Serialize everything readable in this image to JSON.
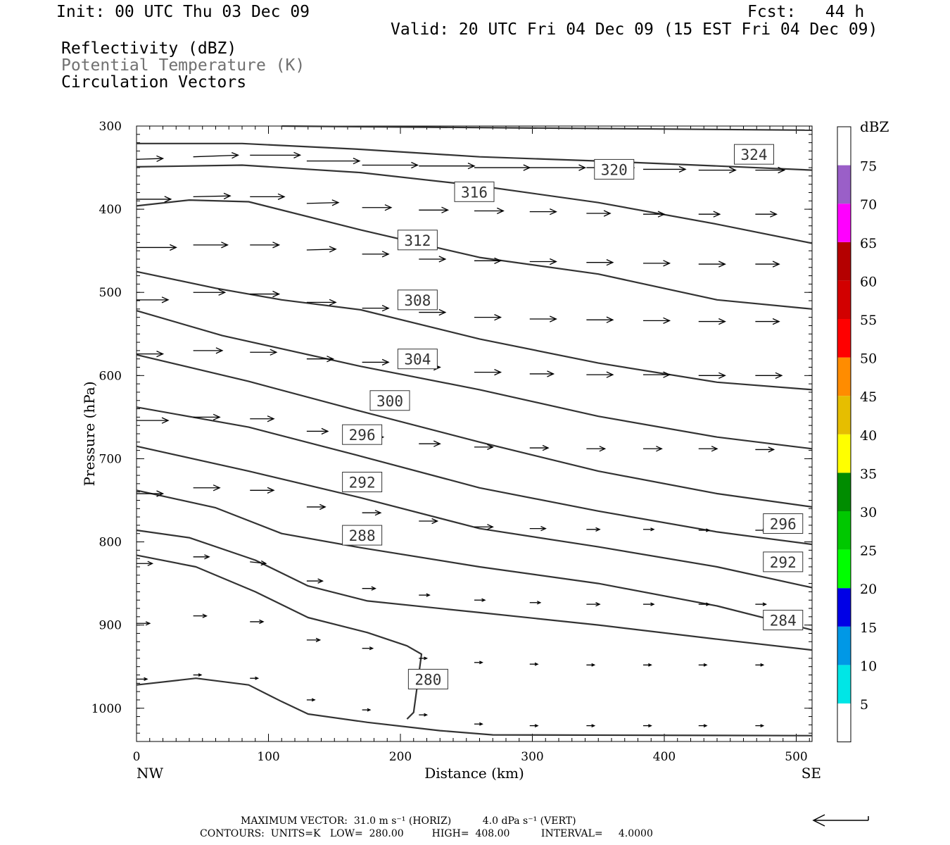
{
  "header": {
    "init": "Init: 00 UTC Thu 03 Dec 09",
    "fcst": "Fcst:   44 h",
    "valid": "Valid: 20 UTC Fri 04 Dec 09 (15 EST Fri 04 Dec 09)",
    "field1": "Reflectivity (dBZ)",
    "field2": "Potential Temperature (K)",
    "field3": "Circulation Vectors"
  },
  "footer": {
    "max_vector": "MAXIMUM VECTOR:  31.0 m s⁻¹ (HORIZ)          4.0 dPa s⁻¹ (VERT)",
    "contours": "CONTOURS:  UNITS=K   LOW=  280.00         HIGH=  408.00          INTERVAL=     4.0000"
  },
  "colorbar": {
    "title": "dBZ",
    "labels": [
      "5",
      "10",
      "15",
      "20",
      "25",
      "30",
      "35",
      "40",
      "45",
      "50",
      "55",
      "60",
      "65",
      "70",
      "75"
    ],
    "colors": [
      "#ffffff",
      "#00e6e6",
      "#0098e6",
      "#0000e6",
      "#00ff00",
      "#00c800",
      "#008c00",
      "#ffff00",
      "#e6be00",
      "#ff8c00",
      "#ff0000",
      "#d20000",
      "#b40000",
      "#ff00ff",
      "#9a5fc8",
      "#ffffff"
    ]
  },
  "chart_data": {
    "type": "line",
    "xlabel": "Distance (km)",
    "ylabel": "Pressure (hPa)",
    "x_ticks": [
      0,
      100,
      200,
      300,
      400,
      500
    ],
    "y_ticks": [
      300,
      400,
      500,
      600,
      700,
      800,
      900,
      1000
    ],
    "xlim": [
      0,
      512
    ],
    "ylim": [
      300,
      1040
    ],
    "left_end_label": "NW",
    "right_end_label": "SE",
    "contour_labels": [
      {
        "text": "324",
        "x": 468,
        "p": 334
      },
      {
        "text": "320",
        "x": 362,
        "p": 352
      },
      {
        "text": "316",
        "x": 256,
        "p": 379
      },
      {
        "text": "312",
        "x": 213,
        "p": 437
      },
      {
        "text": "308",
        "x": 213,
        "p": 509
      },
      {
        "text": "304",
        "x": 213,
        "p": 580
      },
      {
        "text": "300",
        "x": 192,
        "p": 630
      },
      {
        "text": "296",
        "x": 171,
        "p": 671
      },
      {
        "text": "292",
        "x": 171,
        "p": 728
      },
      {
        "text": "288",
        "x": 171,
        "p": 792
      },
      {
        "text": "296",
        "x": 490,
        "p": 778
      },
      {
        "text": "292",
        "x": 490,
        "p": 824
      },
      {
        "text": "284",
        "x": 490,
        "p": 894
      },
      {
        "text": "280",
        "x": 221,
        "p": 965
      }
    ],
    "contours": [
      {
        "pts": [
          [
            110,
            300
          ],
          [
            512,
            305
          ]
        ]
      },
      {
        "pts": [
          [
            0,
            321
          ],
          [
            80,
            321
          ],
          [
            170,
            328
          ],
          [
            260,
            337
          ],
          [
            350,
            342
          ],
          [
            440,
            348
          ],
          [
            512,
            353
          ]
        ]
      },
      {
        "pts": [
          [
            0,
            349
          ],
          [
            80,
            347
          ],
          [
            170,
            356
          ],
          [
            260,
            372
          ],
          [
            350,
            392
          ],
          [
            440,
            418
          ],
          [
            512,
            441
          ]
        ]
      },
      {
        "pts": [
          [
            0,
            396
          ],
          [
            40,
            389
          ],
          [
            85,
            391
          ],
          [
            170,
            425
          ],
          [
            260,
            458
          ],
          [
            350,
            478
          ],
          [
            440,
            509
          ],
          [
            512,
            520
          ]
        ]
      },
      {
        "pts": [
          [
            0,
            475
          ],
          [
            60,
            495
          ],
          [
            110,
            509
          ],
          [
            170,
            521
          ],
          [
            260,
            556
          ],
          [
            350,
            585
          ],
          [
            440,
            608
          ],
          [
            512,
            617
          ]
        ]
      },
      {
        "pts": [
          [
            0,
            522
          ],
          [
            65,
            552
          ],
          [
            170,
            589
          ],
          [
            260,
            617
          ],
          [
            350,
            649
          ],
          [
            440,
            674
          ],
          [
            512,
            688
          ]
        ]
      },
      {
        "pts": [
          [
            0,
            575
          ],
          [
            85,
            607
          ],
          [
            170,
            643
          ],
          [
            260,
            680
          ],
          [
            350,
            715
          ],
          [
            440,
            742
          ],
          [
            512,
            758
          ]
        ]
      },
      {
        "pts": [
          [
            0,
            638
          ],
          [
            85,
            662
          ],
          [
            170,
            697
          ],
          [
            260,
            735
          ],
          [
            350,
            763
          ],
          [
            440,
            788
          ],
          [
            512,
            803
          ]
        ]
      },
      {
        "pts": [
          [
            0,
            685
          ],
          [
            85,
            715
          ],
          [
            170,
            747
          ],
          [
            260,
            784
          ],
          [
            350,
            806
          ],
          [
            440,
            830
          ],
          [
            512,
            855
          ]
        ]
      },
      {
        "pts": [
          [
            0,
            738
          ],
          [
            60,
            759
          ],
          [
            110,
            790
          ],
          [
            170,
            807
          ],
          [
            260,
            830
          ],
          [
            350,
            850
          ],
          [
            440,
            877
          ],
          [
            512,
            906
          ]
        ]
      },
      {
        "pts": [
          [
            0,
            786
          ],
          [
            40,
            795
          ],
          [
            90,
            822
          ],
          [
            130,
            853
          ],
          [
            175,
            871
          ],
          [
            260,
            885
          ],
          [
            350,
            900
          ],
          [
            440,
            917
          ],
          [
            512,
            930
          ]
        ]
      },
      {
        "pts": [
          [
            0,
            816
          ],
          [
            45,
            830
          ],
          [
            90,
            860
          ],
          [
            130,
            891
          ],
          [
            175,
            909
          ],
          [
            205,
            925
          ],
          [
            216,
            935
          ],
          [
            210,
            1005
          ],
          [
            205,
            1013
          ]
        ]
      },
      {
        "pts": [
          [
            0,
            972
          ],
          [
            45,
            964
          ],
          [
            85,
            972
          ],
          [
            110,
            992
          ],
          [
            130,
            1007
          ],
          [
            175,
            1017
          ],
          [
            230,
            1027
          ],
          [
            270,
            1032
          ],
          [
            512,
            1033
          ]
        ]
      }
    ],
    "vectors": [
      [
        0,
        340,
        20,
        -1
      ],
      [
        43,
        337,
        34,
        -2
      ],
      [
        86,
        335,
        38,
        0
      ],
      [
        129,
        342,
        40,
        0
      ],
      [
        171,
        347,
        42,
        0
      ],
      [
        214,
        348,
        42,
        0
      ],
      [
        256,
        350,
        42,
        0
      ],
      [
        298,
        350,
        42,
        0
      ],
      [
        341,
        350,
        36,
        0
      ],
      [
        384,
        352,
        32,
        0
      ],
      [
        426,
        353,
        28,
        0
      ],
      [
        469,
        353,
        22,
        0
      ],
      [
        0,
        388,
        26,
        0
      ],
      [
        43,
        385,
        28,
        -1
      ],
      [
        86,
        385,
        26,
        0
      ],
      [
        129,
        393,
        24,
        -1
      ],
      [
        171,
        398,
        22,
        0
      ],
      [
        214,
        401,
        22,
        0
      ],
      [
        256,
        402,
        22,
        0
      ],
      [
        298,
        403,
        20,
        0
      ],
      [
        341,
        405,
        18,
        0
      ],
      [
        384,
        406,
        16,
        0
      ],
      [
        426,
        406,
        16,
        0
      ],
      [
        469,
        406,
        16,
        0
      ],
      [
        0,
        446,
        30,
        0
      ],
      [
        43,
        443,
        26,
        0
      ],
      [
        86,
        443,
        22,
        0
      ],
      [
        129,
        449,
        22,
        -1
      ],
      [
        171,
        454,
        20,
        0
      ],
      [
        214,
        460,
        20,
        0
      ],
      [
        256,
        462,
        20,
        0
      ],
      [
        298,
        463,
        20,
        0
      ],
      [
        341,
        464,
        20,
        0
      ],
      [
        384,
        465,
        20,
        0
      ],
      [
        426,
        466,
        20,
        0
      ],
      [
        469,
        466,
        18,
        0
      ],
      [
        0,
        509,
        24,
        0
      ],
      [
        43,
        500,
        24,
        0
      ],
      [
        86,
        502,
        22,
        0
      ],
      [
        129,
        512,
        22,
        0
      ],
      [
        171,
        519,
        20,
        0
      ],
      [
        214,
        524,
        20,
        0
      ],
      [
        256,
        530,
        20,
        0
      ],
      [
        298,
        532,
        20,
        0
      ],
      [
        341,
        533,
        20,
        0
      ],
      [
        384,
        534,
        20,
        0
      ],
      [
        426,
        535,
        20,
        0
      ],
      [
        469,
        535,
        18,
        0
      ],
      [
        0,
        574,
        20,
        0
      ],
      [
        43,
        570,
        22,
        0
      ],
      [
        86,
        572,
        20,
        0
      ],
      [
        129,
        580,
        20,
        0
      ],
      [
        171,
        584,
        20,
        0
      ],
      [
        214,
        590,
        16,
        0
      ],
      [
        256,
        596,
        20,
        0
      ],
      [
        298,
        598,
        18,
        0
      ],
      [
        341,
        599,
        20,
        0
      ],
      [
        384,
        599,
        20,
        0
      ],
      [
        426,
        600,
        20,
        0
      ],
      [
        469,
        600,
        20,
        0
      ],
      [
        0,
        654,
        24,
        0
      ],
      [
        43,
        650,
        20,
        0
      ],
      [
        86,
        652,
        18,
        0
      ],
      [
        129,
        667,
        16,
        0
      ],
      [
        171,
        674,
        16,
        0
      ],
      [
        214,
        682,
        16,
        0
      ],
      [
        256,
        686,
        14,
        0
      ],
      [
        298,
        687,
        14,
        0
      ],
      [
        341,
        688,
        14,
        0
      ],
      [
        384,
        688,
        14,
        0
      ],
      [
        426,
        688,
        14,
        0
      ],
      [
        469,
        689,
        14,
        0
      ],
      [
        0,
        742,
        20,
        0
      ],
      [
        43,
        735,
        20,
        0
      ],
      [
        86,
        738,
        18,
        0
      ],
      [
        129,
        758,
        14,
        0
      ],
      [
        171,
        765,
        14,
        0
      ],
      [
        214,
        775,
        14,
        0
      ],
      [
        256,
        782,
        14,
        0
      ],
      [
        298,
        784,
        12,
        0
      ],
      [
        341,
        785,
        10,
        0
      ],
      [
        384,
        785,
        8,
        0
      ],
      [
        426,
        786,
        8,
        0
      ],
      [
        469,
        786,
        8,
        0
      ],
      [
        0,
        826,
        12,
        0
      ],
      [
        43,
        818,
        12,
        0
      ],
      [
        86,
        824,
        12,
        2
      ],
      [
        129,
        847,
        12,
        0
      ],
      [
        171,
        856,
        10,
        0
      ],
      [
        214,
        864,
        8,
        0
      ],
      [
        256,
        870,
        8,
        0
      ],
      [
        298,
        873,
        8,
        0
      ],
      [
        341,
        875,
        10,
        0
      ],
      [
        384,
        875,
        8,
        0
      ],
      [
        426,
        875,
        8,
        0
      ],
      [
        469,
        875,
        8,
        0
      ],
      [
        0,
        898,
        10,
        0
      ],
      [
        43,
        889,
        10,
        0
      ],
      [
        86,
        896,
        10,
        0
      ],
      [
        129,
        918,
        10,
        0
      ],
      [
        171,
        928,
        8,
        0
      ],
      [
        214,
        940,
        6,
        0
      ],
      [
        256,
        945,
        6,
        0
      ],
      [
        298,
        947,
        6,
        0
      ],
      [
        341,
        948,
        6,
        0
      ],
      [
        384,
        948,
        6,
        0
      ],
      [
        426,
        948,
        6,
        0
      ],
      [
        469,
        948,
        6,
        0
      ],
      [
        0,
        965,
        8,
        0
      ],
      [
        43,
        960,
        6,
        0
      ],
      [
        86,
        964,
        6,
        0
      ],
      [
        129,
        990,
        6,
        0
      ],
      [
        171,
        1002,
        6,
        0
      ],
      [
        214,
        1008,
        6,
        0
      ],
      [
        256,
        1019,
        6,
        0
      ],
      [
        298,
        1021,
        6,
        0
      ],
      [
        341,
        1021,
        6,
        0
      ],
      [
        384,
        1021,
        6,
        0
      ],
      [
        426,
        1021,
        6,
        0
      ],
      [
        469,
        1021,
        6,
        0
      ]
    ]
  }
}
